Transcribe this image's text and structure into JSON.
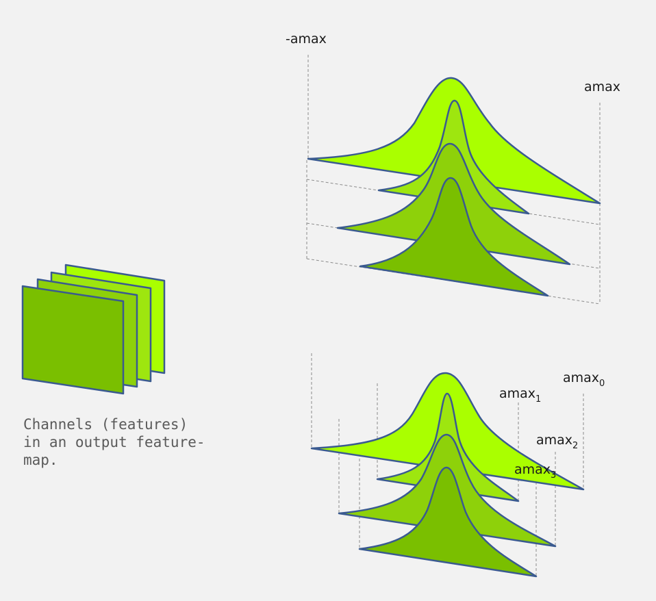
{
  "caption": "Channels (features)\nin an output feature-\nmap.",
  "top_plot": {
    "left_label": "-amax",
    "right_label": "amax"
  },
  "bottom_plot": {
    "labels": [
      {
        "base": "amax",
        "sub": "0"
      },
      {
        "base": "amax",
        "sub": "1"
      },
      {
        "base": "amax",
        "sub": "2"
      },
      {
        "base": "amax",
        "sub": "3"
      }
    ]
  },
  "colors": {
    "background": "#f2f2f2",
    "fill_front": "#7abf00",
    "fill_mid2": "#8ed10a",
    "fill_mid1": "#9ee60f",
    "fill_back": "#aaff00",
    "outline": "#3a5a90",
    "guide": "#8a8a8a"
  }
}
